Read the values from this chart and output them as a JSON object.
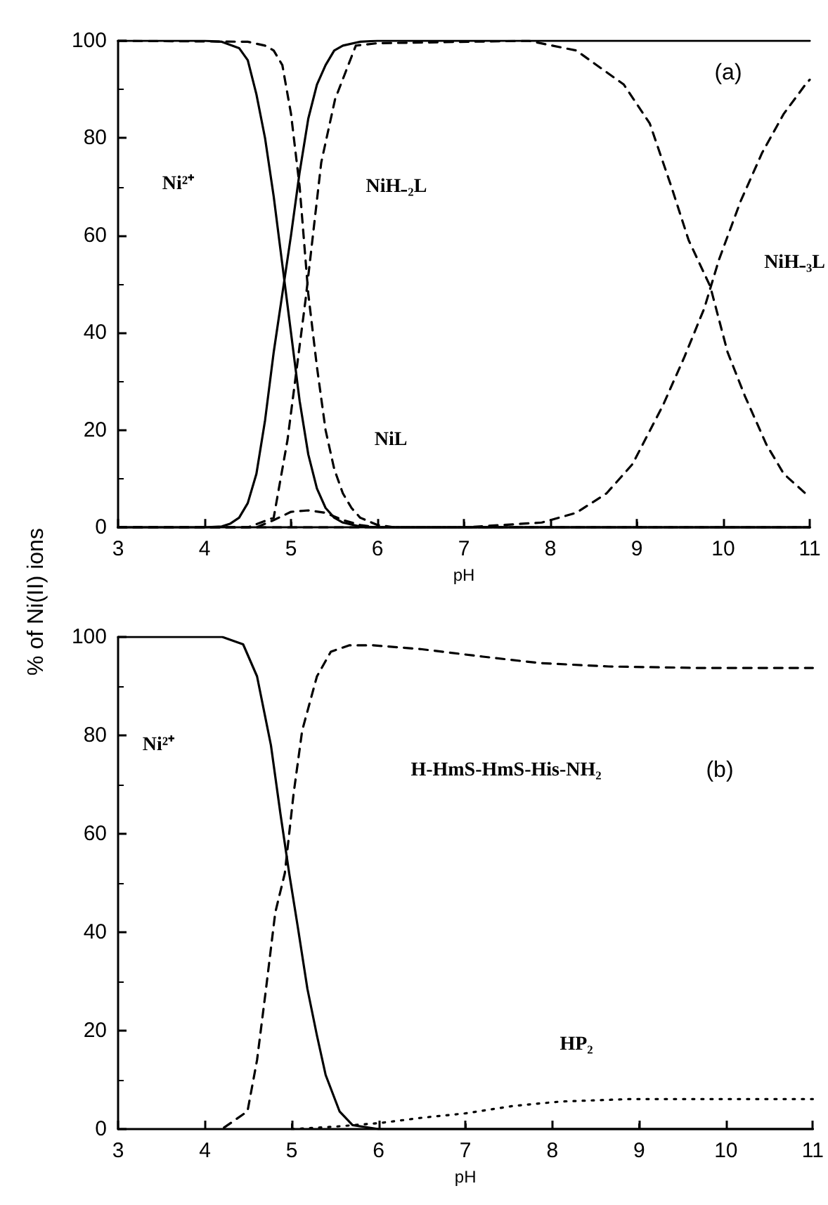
{
  "chart_data": [
    {
      "type": "line",
      "xlabel": "pH",
      "ylabel": "% of Ni(II) ions",
      "xlim": [
        3,
        11
      ],
      "ylim": [
        0,
        100
      ],
      "xticks": [
        3,
        4,
        5,
        6,
        7,
        8,
        9,
        10,
        11
      ],
      "yticks": [
        0,
        20,
        40,
        60,
        80,
        100
      ],
      "grid": false,
      "marker": "none",
      "annotations": [
        "(a)",
        "Ni²⁺",
        "NiH₋₂L",
        "NiL",
        "NiH₋₃L"
      ],
      "series": [
        {
          "color": "#000000",
          "line_style": "solid",
          "x": [
            3,
            4,
            4.2,
            4.4,
            4.5,
            4.6,
            4.7,
            4.8,
            4.9,
            5.0,
            5.1,
            5.2,
            5.3,
            5.4,
            5.5,
            5.6,
            5.8,
            6,
            11
          ],
          "values": [
            100,
            100,
            99.8,
            98.5,
            96,
            89,
            80,
            68,
            54,
            40,
            26,
            15,
            8,
            4,
            2,
            1,
            0.2,
            0,
            0
          ]
        },
        {
          "color": "#000000",
          "line_style": "solid",
          "x": [
            3,
            4,
            4.2,
            4.3,
            4.4,
            4.5,
            4.6,
            4.7,
            4.8,
            4.9,
            5.0,
            5.1,
            5.2,
            5.3,
            5.4,
            5.5,
            5.6,
            5.8,
            6,
            11
          ],
          "values": [
            0,
            0,
            0.2,
            0.8,
            2,
            5,
            11,
            22,
            36,
            48,
            60,
            73,
            84,
            91,
            95,
            98,
            99,
            99.8,
            100,
            100
          ]
        },
        {
          "color": "#000000",
          "line_style": "dashed",
          "x": [
            3,
            4.5,
            4.7,
            4.8,
            4.9,
            5.0,
            5.1,
            5.2,
            5.3,
            5.4,
            5.5,
            5.6,
            5.7,
            5.8,
            6,
            6.2,
            11
          ],
          "values": [
            100,
            99.8,
            99,
            98,
            95,
            85,
            70,
            48,
            33,
            20,
            12,
            7,
            4,
            2,
            0.5,
            0,
            0
          ]
        },
        {
          "color": "#000000",
          "line_style": "dashed",
          "x": [
            3,
            4.5,
            4.8,
            4.96,
            5.17,
            5.35,
            5.51,
            5.75,
            6,
            7.75,
            8.3,
            8.85,
            9.15,
            9.4,
            9.6,
            9.85,
            10.05,
            10.25,
            10.5,
            10.7,
            10.95,
            11
          ],
          "values": [
            0,
            0,
            2,
            18,
            47,
            75,
            88,
            99,
            99.5,
            100,
            98,
            91,
            83,
            70,
            59,
            49.5,
            36,
            27,
            17,
            11,
            7,
            6.5
          ]
        },
        {
          "color": "#000000",
          "line_style": "dashed",
          "x": [
            3,
            4.6,
            4.8,
            5.0,
            5.2,
            5.4,
            5.6,
            5.8,
            6,
            11
          ],
          "values": [
            0,
            0,
            1.5,
            3.2,
            3.5,
            3,
            1.5,
            0.5,
            0,
            0
          ]
        },
        {
          "color": "#000000",
          "line_style": "dashed",
          "x": [
            3,
            7,
            7.9,
            8.3,
            8.65,
            8.95,
            9.3,
            9.55,
            9.78,
            9.95,
            10.2,
            10.45,
            10.7,
            10.95,
            11
          ],
          "values": [
            0,
            0,
            1,
            3,
            7,
            13,
            25,
            35,
            45,
            55,
            67,
            77,
            85,
            91,
            92
          ]
        }
      ]
    },
    {
      "type": "line",
      "xlabel": "pH",
      "xlim": [
        3,
        11
      ],
      "ylim": [
        0,
        100
      ],
      "xticks": [
        3,
        4,
        5,
        6,
        7,
        8,
        9,
        10,
        11
      ],
      "yticks": [
        0,
        20,
        40,
        60,
        80,
        100
      ],
      "grid": false,
      "marker": "none",
      "annotations": [
        "(b)",
        "Ni²⁺",
        "H-HmS-HmS-His-NH₂",
        "HP₂"
      ],
      "series": [
        {
          "color": "#000000",
          "line_style": "solid",
          "x": [
            3,
            4.2,
            4.44,
            4.6,
            4.76,
            4.87,
            4.97,
            5.07,
            5.18,
            5.29,
            5.39,
            5.55,
            5.7,
            6,
            11
          ],
          "values": [
            100,
            100,
            98.5,
            92,
            78,
            64,
            52,
            41,
            28.5,
            19,
            11,
            3.6,
            0.8,
            0,
            0
          ]
        },
        {
          "color": "#000000",
          "line_style": "dashed",
          "x": [
            4.22,
            4.49,
            4.6,
            4.7,
            4.81,
            4.92,
            5.02,
            5.12,
            5.29,
            5.45,
            5.66,
            5.93,
            6.5,
            7.2,
            7.85,
            8.65,
            9.7,
            11
          ],
          "values": [
            0.3,
            3.6,
            14,
            28,
            44,
            52,
            68,
            81,
            92,
            97,
            98.3,
            98.3,
            97.5,
            96,
            94.7,
            94,
            93.7,
            93.7
          ]
        },
        {
          "color": "#000000",
          "line_style": "dotted",
          "x": [
            5.0,
            5.5,
            6,
            6.5,
            7.0,
            7.55,
            8.1,
            8.9,
            11
          ],
          "values": [
            0,
            0.5,
            1.2,
            2.3,
            3.2,
            4.7,
            5.6,
            6.1,
            6.1
          ]
        }
      ]
    }
  ]
}
